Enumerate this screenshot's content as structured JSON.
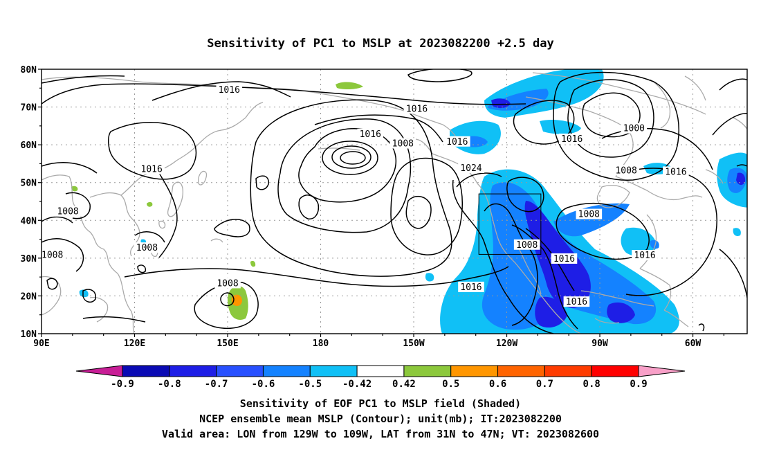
{
  "title": "Sensitivity of PC1 to MSLP at 2023082200 +2.5 day",
  "lat_labels": [
    {
      "lat": 80,
      "label": "80N"
    },
    {
      "lat": 70,
      "label": "70N"
    },
    {
      "lat": 60,
      "label": "60N"
    },
    {
      "lat": 50,
      "label": "50N"
    },
    {
      "lat": 40,
      "label": "40N"
    },
    {
      "lat": 30,
      "label": "30N"
    },
    {
      "lat": 20,
      "label": "20N"
    },
    {
      "lat": 10,
      "label": "10N"
    }
  ],
  "lon_labels": [
    {
      "lon": 90,
      "label": "90E"
    },
    {
      "lon": 120,
      "label": "120E"
    },
    {
      "lon": 150,
      "label": "150E"
    },
    {
      "lon": 180,
      "label": "180"
    },
    {
      "lon": 210,
      "label": "150W"
    },
    {
      "lon": 240,
      "label": "120W"
    },
    {
      "lon": 270,
      "label": "90W"
    },
    {
      "lon": 300,
      "label": "60W"
    }
  ],
  "contour_labels": [
    {
      "text": "1016",
      "lon": 150.5,
      "lat": 74.5
    },
    {
      "text": "1016",
      "lon": 211,
      "lat": 69.5
    },
    {
      "text": "1016",
      "lon": 196,
      "lat": 62.8
    },
    {
      "text": "1008",
      "lon": 206.5,
      "lat": 60.3
    },
    {
      "text": "1016",
      "lon": 224,
      "lat": 60.8
    },
    {
      "text": "1024",
      "lon": 228.5,
      "lat": 53.8
    },
    {
      "text": "1016",
      "lon": 261,
      "lat": 61.5
    },
    {
      "text": "1000",
      "lon": 281,
      "lat": 64.3
    },
    {
      "text": "1008",
      "lon": 278.5,
      "lat": 53.2
    },
    {
      "text": "1016",
      "lon": 294.5,
      "lat": 52.8
    },
    {
      "text": "1016",
      "lon": 125.5,
      "lat": 53.5
    },
    {
      "text": "1008",
      "lon": 98.5,
      "lat": 42.3
    },
    {
      "text": "1008",
      "lon": 93.5,
      "lat": 30.8
    },
    {
      "text": "1008",
      "lon": 124,
      "lat": 32.7
    },
    {
      "text": "1008",
      "lon": 246.5,
      "lat": 33.5
    },
    {
      "text": "1016",
      "lon": 258.5,
      "lat": 29.8
    },
    {
      "text": "1016",
      "lon": 284.5,
      "lat": 30.7
    },
    {
      "text": "1008",
      "lon": 266.5,
      "lat": 41.6
    },
    {
      "text": "1016",
      "lon": 228.5,
      "lat": 22.3
    },
    {
      "text": "1016",
      "lon": 262.5,
      "lat": 18.4
    },
    {
      "text": "1008",
      "lon": 150,
      "lat": 23.3
    }
  ],
  "contour_legend": {
    "colors": [
      "#c81e96",
      "#0a0ab4",
      "#1e1ee6",
      "#2850ff",
      "#1482ff",
      "#10c0f6",
      "#ffffff",
      "#8cc83c",
      "#ff9600",
      "#ff6400",
      "#ff3c00",
      "#ff0000",
      "#f8a0c8"
    ],
    "labels": [
      "-0.9",
      "-0.8",
      "-0.7",
      "-0.6",
      "-0.5",
      "-0.42",
      "0.42",
      "0.5",
      "0.6",
      "0.7",
      "0.8",
      "0.9"
    ]
  },
  "caption_lines": [
    "Sensitivity of EOF PC1 to MSLP field (Shaded)",
    "NCEP ensemble mean MSLP (Contour); unit(mb); IT:2023082200",
    "Valid area: LON from 129W to 109W, LAT from 31N to 47N; VT: 2023082600"
  ],
  "valid_area": {
    "lon_min": 231,
    "lon_max": 251,
    "lat_min": 31,
    "lat_max": 47
  },
  "colors": {
    "coast": "#aaaaaa",
    "contour": "#000000",
    "grid": "#999999",
    "shade_minus_05": "#10c0f6",
    "shade_minus_06": "#1482ff",
    "shade_minus_07": "#1e1ee6",
    "shade_plus_05": "#8cc83c",
    "shade_plus_06": "#ff9600"
  }
}
